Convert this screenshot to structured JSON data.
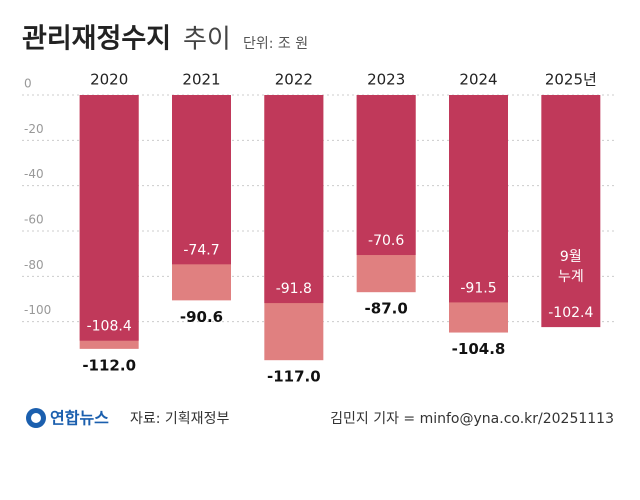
{
  "chart_data": {
    "type": "bar",
    "title": "관리재정수지",
    "title_suffix": "추이",
    "unit": "단위: 조 원",
    "categories": [
      "2020",
      "2021",
      "2022",
      "2023",
      "2024",
      "2025년"
    ],
    "series": [
      {
        "color": "#e08080",
        "values": [
          -112.0,
          -90.6,
          -117.0,
          -87.0,
          -104.8,
          null
        ],
        "value_labels": [
          "-112.0",
          "-90.6",
          "-117.0",
          "-87.0",
          "-104.8",
          null
        ]
      },
      {
        "name": "9월 누계",
        "color": "#c0395a",
        "values": [
          -108.4,
          -74.7,
          -91.8,
          -70.6,
          -91.5,
          -102.4
        ],
        "value_labels": [
          "-108.4",
          "-74.7",
          "-91.8",
          "-70.6",
          "-91.5",
          "-102.4"
        ]
      }
    ],
    "ylim": [
      -120,
      0
    ],
    "yticks": [
      0,
      -20,
      -40,
      -60,
      -80,
      -100
    ],
    "grid": true,
    "logo": "연합뉴스",
    "source": "자료: 기획재정부",
    "credit": "김민지 기자 = minfo@yna.co.kr/20251113"
  }
}
